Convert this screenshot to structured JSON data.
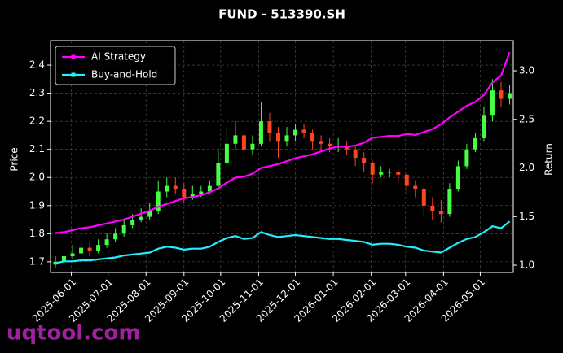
{
  "chart_data": {
    "type": "candlestick",
    "title": "FUND - 513390.SH",
    "ylabel": "Price",
    "y2label": "Return",
    "watermark": "uqtool.com",
    "x": [
      "2025-05-19",
      "2025-05-26",
      "2025-06-02",
      "2025-06-09",
      "2025-06-16",
      "2025-06-23",
      "2025-06-30",
      "2025-07-07",
      "2025-07-14",
      "2025-07-21",
      "2025-07-28",
      "2025-08-04",
      "2025-08-11",
      "2025-08-18",
      "2025-08-25",
      "2025-09-01",
      "2025-09-08",
      "2025-09-15",
      "2025-09-22",
      "2025-09-29",
      "2025-10-06",
      "2025-10-13",
      "2025-10-20",
      "2025-10-27",
      "2025-11-03",
      "2025-11-10",
      "2025-11-17",
      "2025-11-24",
      "2025-12-01",
      "2025-12-08",
      "2025-12-15",
      "2025-12-22",
      "2025-12-29",
      "2026-01-05",
      "2026-01-12",
      "2026-01-19",
      "2026-01-26",
      "2026-02-02",
      "2026-02-09",
      "2026-02-16",
      "2026-02-23",
      "2026-03-02",
      "2026-03-09",
      "2026-03-16",
      "2026-03-23",
      "2026-03-30",
      "2026-04-06",
      "2026-04-13",
      "2026-04-20",
      "2026-04-27",
      "2026-05-04",
      "2026-05-11",
      "2026-05-18",
      "2026-05-25"
    ],
    "open": [
      1.69,
      1.7,
      1.72,
      1.73,
      1.75,
      1.74,
      1.76,
      1.78,
      1.8,
      1.83,
      1.85,
      1.86,
      1.88,
      1.95,
      1.97,
      1.96,
      1.93,
      1.94,
      1.95,
      1.97,
      2.05,
      2.12,
      2.15,
      2.1,
      2.12,
      2.2,
      2.16,
      2.13,
      2.15,
      2.17,
      2.16,
      2.13,
      2.12,
      2.11,
      2.11,
      2.1,
      2.07,
      2.05,
      2.01,
      2.02,
      2.02,
      2.01,
      1.97,
      1.96,
      1.9,
      1.88,
      1.87,
      1.96,
      2.04,
      2.1,
      2.14,
      2.22,
      2.31,
      2.28
    ],
    "high": [
      1.72,
      1.74,
      1.76,
      1.77,
      1.77,
      1.78,
      1.8,
      1.82,
      1.85,
      1.87,
      1.89,
      1.91,
      1.99,
      2.0,
      2.0,
      1.98,
      1.97,
      1.97,
      1.99,
      2.1,
      2.18,
      2.2,
      2.17,
      2.15,
      2.27,
      2.23,
      2.18,
      2.18,
      2.19,
      2.19,
      2.17,
      2.15,
      2.14,
      2.14,
      2.13,
      2.11,
      2.09,
      2.06,
      2.04,
      2.03,
      2.03,
      2.02,
      1.99,
      1.97,
      1.93,
      1.92,
      1.98,
      2.06,
      2.12,
      2.16,
      2.25,
      2.35,
      2.34,
      2.33
    ],
    "low": [
      1.68,
      1.69,
      1.71,
      1.72,
      1.72,
      1.73,
      1.75,
      1.77,
      1.79,
      1.82,
      1.84,
      1.85,
      1.87,
      1.93,
      1.94,
      1.91,
      1.92,
      1.93,
      1.94,
      1.96,
      2.04,
      2.1,
      2.06,
      2.08,
      2.11,
      2.13,
      2.07,
      2.11,
      2.13,
      2.14,
      2.1,
      2.1,
      2.09,
      2.09,
      2.08,
      2.04,
      2.02,
      1.98,
      2.0,
      2.0,
      1.98,
      1.94,
      1.93,
      1.86,
      1.85,
      1.84,
      1.86,
      1.95,
      2.03,
      2.09,
      2.13,
      2.2,
      2.25,
      2.26
    ],
    "close": [
      1.7,
      1.72,
      1.73,
      1.75,
      1.74,
      1.76,
      1.78,
      1.8,
      1.83,
      1.85,
      1.86,
      1.88,
      1.95,
      1.97,
      1.96,
      1.93,
      1.94,
      1.95,
      1.97,
      2.05,
      2.12,
      2.15,
      2.1,
      2.12,
      2.2,
      2.16,
      2.13,
      2.15,
      2.17,
      2.16,
      2.13,
      2.12,
      2.11,
      2.11,
      2.1,
      2.07,
      2.05,
      2.01,
      2.02,
      2.02,
      2.01,
      1.97,
      1.96,
      1.9,
      1.88,
      1.87,
      1.96,
      2.04,
      2.1,
      2.14,
      2.22,
      2.31,
      2.28,
      2.3
    ],
    "up_color": "#44ff44",
    "down_color": "#ff4422",
    "series": [
      {
        "name": "AI Strategy",
        "color": "#ff00ff",
        "axis": "y2",
        "values": [
          1.33,
          1.34,
          1.36,
          1.38,
          1.39,
          1.41,
          1.43,
          1.45,
          1.47,
          1.5,
          1.53,
          1.56,
          1.6,
          1.63,
          1.66,
          1.69,
          1.7,
          1.72,
          1.75,
          1.79,
          1.85,
          1.9,
          1.91,
          1.94,
          2.0,
          2.02,
          2.04,
          2.07,
          2.1,
          2.12,
          2.14,
          2.17,
          2.2,
          2.22,
          2.22,
          2.23,
          2.26,
          2.31,
          2.32,
          2.33,
          2.33,
          2.35,
          2.34,
          2.37,
          2.4,
          2.45,
          2.52,
          2.58,
          2.64,
          2.68,
          2.75,
          2.88,
          2.95,
          3.19
        ]
      },
      {
        "name": "Buy-and-Hold",
        "color": "#22eeff",
        "axis": "y2",
        "values": [
          1.02,
          1.04,
          1.04,
          1.05,
          1.05,
          1.06,
          1.07,
          1.08,
          1.1,
          1.11,
          1.12,
          1.13,
          1.17,
          1.19,
          1.18,
          1.16,
          1.17,
          1.17,
          1.19,
          1.24,
          1.28,
          1.3,
          1.27,
          1.28,
          1.34,
          1.31,
          1.29,
          1.3,
          1.31,
          1.3,
          1.29,
          1.28,
          1.27,
          1.27,
          1.26,
          1.25,
          1.24,
          1.21,
          1.22,
          1.22,
          1.21,
          1.19,
          1.18,
          1.15,
          1.14,
          1.13,
          1.18,
          1.23,
          1.27,
          1.29,
          1.34,
          1.4,
          1.38,
          1.45
        ]
      }
    ],
    "xlim": [
      "2025-05-15",
      "2026-05-28"
    ],
    "xticks": [
      "2025-06-01",
      "2025-07-01",
      "2025-08-01",
      "2025-09-01",
      "2025-10-01",
      "2025-11-01",
      "2025-12-01",
      "2026-01-01",
      "2026-02-01",
      "2026-03-01",
      "2026-04-01",
      "2026-05-01"
    ],
    "ylim": [
      1.662,
      2.487
    ],
    "yticks": [
      1.7,
      1.8,
      1.9,
      {
        "value": 2,
        "label": "2.0"
      },
      2.1,
      2.2,
      2.3,
      2.4
    ],
    "y2lim": [
      0.925,
      3.31
    ],
    "y2ticks": [
      {
        "value": 1,
        "label": "1.0"
      },
      1.5,
      {
        "value": 2,
        "label": "2.0"
      },
      2.5,
      {
        "value": 3,
        "label": "3.0"
      }
    ],
    "grid": true,
    "legend": "upper left"
  }
}
